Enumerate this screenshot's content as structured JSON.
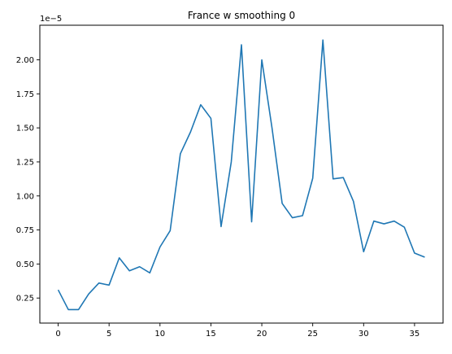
{
  "chart_data": {
    "type": "line",
    "title": "France w smoothing 0",
    "xlabel": "",
    "ylabel": "",
    "y_offset_label": "1e−5",
    "xlim": [
      -1.8,
      37.8
    ],
    "ylim": [
      0.066,
      2.254
    ],
    "x_ticks": [
      0,
      5,
      10,
      15,
      20,
      25,
      30,
      35
    ],
    "x_tick_labels": [
      "0",
      "5",
      "10",
      "15",
      "20",
      "25",
      "30",
      "35"
    ],
    "y_ticks": [
      0.25,
      0.5,
      0.75,
      1.0,
      1.25,
      1.5,
      1.75,
      2.0
    ],
    "y_tick_labels": [
      "0.25",
      "0.50",
      "0.75",
      "1.00",
      "1.25",
      "1.50",
      "1.75",
      "2.00"
    ],
    "grid": false,
    "series": [
      {
        "color": "#1f77b4",
        "x": [
          0,
          1,
          2,
          3,
          4,
          5,
          6,
          7,
          8,
          9,
          10,
          11,
          12,
          13,
          14,
          15,
          16,
          17,
          18,
          19,
          20,
          21,
          22,
          23,
          24,
          25,
          26,
          27,
          28,
          29,
          30,
          31,
          32,
          33,
          34,
          35,
          36
        ],
        "values": [
          0.31,
          0.165,
          0.165,
          0.28,
          0.36,
          0.345,
          0.545,
          0.45,
          0.48,
          0.435,
          0.625,
          0.745,
          1.31,
          1.47,
          1.67,
          1.57,
          0.775,
          1.25,
          2.11,
          0.81,
          2.0,
          1.5,
          0.945,
          0.84,
          0.855,
          1.13,
          2.145,
          1.125,
          1.135,
          0.96,
          0.59,
          0.815,
          0.795,
          0.815,
          0.77,
          0.58,
          0.55
        ]
      }
    ]
  }
}
